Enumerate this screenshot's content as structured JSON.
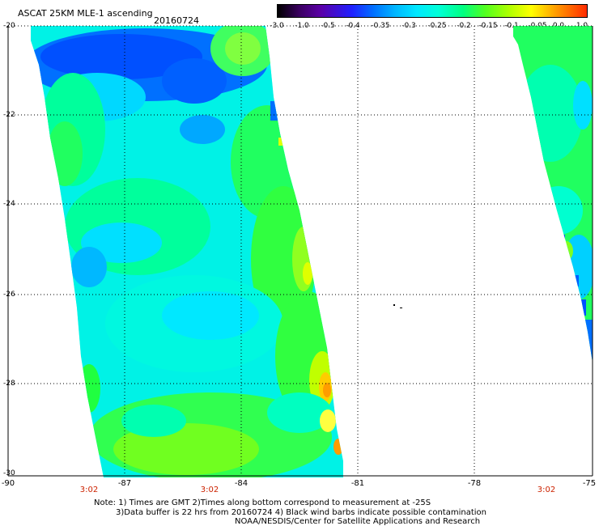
{
  "header": {
    "title": "ASCAT 25KM MLE-1 ascending",
    "date": "20160724"
  },
  "colorbar": {
    "labels": [
      "-3.0",
      "-1.0",
      "-0.5",
      "-0.4",
      "-0.35",
      "-0.3",
      "-0.25",
      "-0.2",
      "-0.15",
      "-0.1",
      "-0.05",
      "0.0",
      "1.0"
    ]
  },
  "axes": {
    "lat_labels": [
      "-20",
      "-22",
      "-24",
      "-26",
      "-28",
      "-30"
    ],
    "lon_labels": [
      "-90",
      "-87",
      "-84",
      "-81",
      "-78",
      "-75"
    ]
  },
  "swath_times": [
    "3:02",
    "3:02",
    "3:02"
  ],
  "notes": {
    "line1": "Note: 1) Times are GMT 2)Times along bottom correspond to measurement at -25S",
    "line2": "3)Data buffer is 22 hrs from 20160724 4) Black wind barbs indicate possible contamination",
    "line3": "NOAA/NESDIS/Center for Satellite Applications and Research"
  },
  "colors": {
    "deep_blue": "#0050ff",
    "cyan": "#00e8ff",
    "aqua": "#00ffcc",
    "green": "#20ff40",
    "yellow": "#ffff00",
    "orange": "#ff9c00"
  }
}
